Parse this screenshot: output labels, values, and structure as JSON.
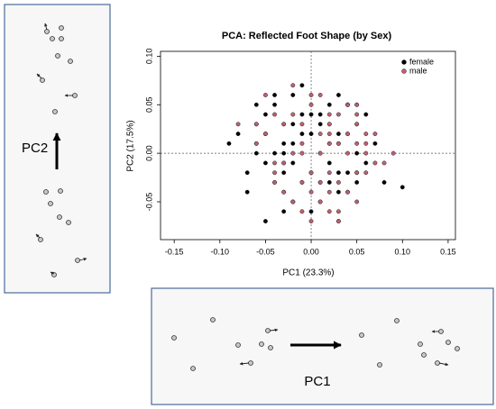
{
  "chart_data": {
    "type": "scatter",
    "title": "PCA: Reflected Foot Shape (by Sex)",
    "xlabel": "PC1 (23.3%)",
    "ylabel": "PC2 (17.5%)",
    "xlim": [
      -0.165,
      0.158
    ],
    "ylim": [
      -0.089,
      0.105
    ],
    "xticks": [
      -0.15,
      {
        "value": -0.1,
        "label": "-0.10"
      },
      -0.05,
      {
        "value": 0,
        "label": "0.00"
      },
      0.05,
      {
        "value": 0.1,
        "label": "0.10"
      },
      0.15
    ],
    "yticks": [
      -0.05,
      {
        "value": 0,
        "label": "0.00"
      },
      0.05,
      {
        "value": 0.1,
        "label": "0.10"
      }
    ],
    "reference_lines": true,
    "legend": "topright",
    "series": [
      {
        "name": "female",
        "color": "#000000",
        "x": [
          -0.06,
          -0.04,
          -0.03,
          -0.07,
          -0.02,
          0.01,
          0.03,
          0.05,
          -0.05,
          -0.01,
          0.02,
          0.04,
          -0.03,
          -0.06,
          -0.02,
          0.0,
          0.03,
          0.06,
          -0.04,
          -0.01,
          0.02,
          0.05,
          -0.05,
          -0.03,
          0.01,
          0.04,
          -0.02,
          -0.07,
          0.0,
          0.03,
          -0.04,
          -0.06,
          0.02,
          0.06,
          -0.01,
          -0.03,
          0.01,
          0.05,
          -0.05,
          0.1,
          0.08,
          -0.09,
          -0.03,
          0.02,
          -0.02,
          0.04,
          -0.04,
          0.0,
          -0.06,
          0.03,
          -0.01,
          0.07,
          -0.05,
          0.01,
          -0.03,
          0.02,
          -0.08,
          0.05,
          -0.02,
          0.0
        ],
        "values": [
          0.03,
          0.05,
          0.01,
          -0.02,
          0.06,
          0.04,
          0.02,
          0.0,
          -0.01,
          -0.03,
          0.05,
          -0.02,
          0.03,
          0.01,
          -0.05,
          0.02,
          -0.04,
          0.04,
          0.0,
          0.07,
          -0.01,
          0.03,
          0.02,
          -0.06,
          0.0,
          0.05,
          0.01,
          -0.04,
          -0.02,
          0.06,
          -0.03,
          0.05,
          0.03,
          -0.01,
          0.04,
          -0.02,
          -0.05,
          -0.03,
          0.04,
          -0.035,
          -0.03,
          0.01,
          0.0,
          0.01,
          -0.01,
          0.02,
          0.06,
          -0.06,
          0.0,
          -0.02,
          0.02,
          0.01,
          -0.07,
          0.03,
          -0.04,
          -0.03,
          0.02,
          0.05,
          0.03,
          0.04
        ]
      },
      {
        "name": "male",
        "color": "#c06070",
        "x": [
          -0.05,
          -0.02,
          0.01,
          0.03,
          0.05,
          -0.04,
          -0.01,
          0.02,
          0.04,
          0.07,
          -0.03,
          0.0,
          0.02,
          0.05,
          -0.06,
          -0.02,
          0.01,
          0.03,
          0.06,
          -0.04,
          -0.01,
          0.02,
          0.04,
          0.08,
          -0.03,
          0.0,
          0.03,
          0.05,
          -0.05,
          -0.02,
          0.01,
          0.04,
          0.06,
          -0.01,
          0.02,
          0.05,
          -0.03,
          0.0,
          0.03,
          0.09,
          -0.08,
          -0.04,
          0.01,
          0.04,
          0.02,
          -0.02,
          0.03,
          0.06,
          -0.01,
          0.05,
          0.0,
          -0.05,
          0.02,
          0.04,
          -0.03,
          0.01,
          0.07,
          -0.01,
          0.03,
          0.05,
          -0.02,
          0.0,
          0.02,
          0.04,
          0.06,
          -0.04,
          0.01,
          0.03,
          0.05,
          -0.06
        ],
        "values": [
          0.02,
          0.04,
          0.06,
          0.01,
          -0.02,
          -0.03,
          0.0,
          0.03,
          -0.04,
          0.02,
          -0.01,
          0.05,
          -0.02,
          0.03,
          0.01,
          -0.05,
          0.02,
          -0.03,
          0.0,
          0.04,
          -0.06,
          0.01,
          0.05,
          -0.01,
          -0.04,
          -0.02,
          0.04,
          -0.05,
          0.02,
          0.07,
          -0.03,
          0.02,
          -0.02,
          0.03,
          -0.06,
          0.01,
          -0.01,
          0.06,
          -0.07,
          0.0,
          0.03,
          -0.02,
          0.0,
          -0.04,
          0.04,
          -0.05,
          0.01,
          0.02,
          -0.03,
          0.05,
          -0.07,
          0.06,
          -0.04,
          0.0,
          0.03,
          -0.03,
          -0.01,
          0.01,
          -0.06,
          -0.02,
          0.0,
          -0.04,
          0.02,
          0.05,
          0.01,
          -0.01,
          -0.05,
          -0.07,
          0.04,
          0.03
        ]
      }
    ]
  },
  "panels": {
    "left_label": "PC2",
    "bottom_label": "PC1"
  }
}
